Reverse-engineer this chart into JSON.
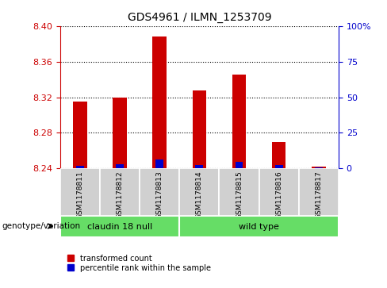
{
  "title": "GDS4961 / ILMN_1253709",
  "samples": [
    "GSM1178811",
    "GSM1178812",
    "GSM1178813",
    "GSM1178814",
    "GSM1178815",
    "GSM1178816",
    "GSM1178817"
  ],
  "red_values": [
    8.315,
    8.32,
    8.388,
    8.328,
    8.345,
    8.27,
    8.242
  ],
  "blue_values": [
    8.243,
    8.245,
    8.25,
    8.244,
    8.247,
    8.244,
    8.2415
  ],
  "base_value": 8.24,
  "ylim_left": [
    8.24,
    8.4
  ],
  "yticks_left": [
    8.24,
    8.28,
    8.32,
    8.36,
    8.4
  ],
  "yticks_right": [
    0,
    25,
    50,
    75,
    100
  ],
  "groups": [
    {
      "label": "claudin 18 null",
      "start": 0,
      "end": 3,
      "color": "#66dd66"
    },
    {
      "label": "wild type",
      "start": 3,
      "end": 7,
      "color": "#66dd66"
    }
  ],
  "group_row_label": "genotype/variation",
  "legend_items": [
    {
      "color": "#cc0000",
      "label": "transformed count"
    },
    {
      "color": "#0000cc",
      "label": "percentile rank within the sample"
    }
  ],
  "bar_color": "#cc0000",
  "blue_color": "#0000cc",
  "sample_bg_color": "#d0d0d0",
  "left_tick_color": "#cc0000",
  "right_tick_color": "#0000cc"
}
